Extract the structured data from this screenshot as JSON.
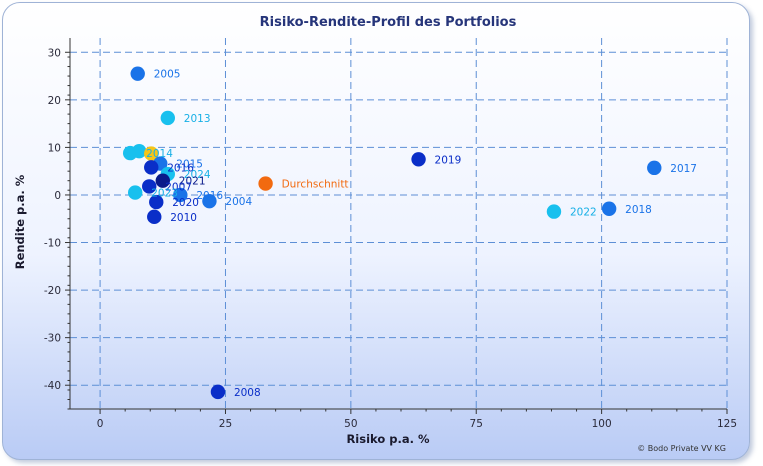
{
  "chart_data": {
    "type": "scatter",
    "title": "Risiko-Rendite-Profil des Portfolios",
    "xlabel": "Risiko p.a. %",
    "ylabel": "Rendite p.a. %",
    "xlim": [
      -6,
      125
    ],
    "ylim": [
      -45,
      33
    ],
    "xticks": [
      0,
      25,
      50,
      75,
      100,
      125
    ],
    "yticks": [
      -40,
      -30,
      -20,
      -10,
      0,
      10,
      20,
      30
    ],
    "grid": true,
    "copyright": "© Bodo Private VV KG",
    "points": [
      {
        "label": "2005",
        "x": 7.5,
        "y": 25.5,
        "color": "#1a73e8",
        "label_color": "#1a73e8"
      },
      {
        "label": "2013",
        "x": 13.5,
        "y": 16.2,
        "color": "#18c0ee",
        "label_color": "#18b0e6"
      },
      {
        "label": "2014",
        "x": 6,
        "y": 8.8,
        "color": "#18c0ee",
        "label_color": "#18b0e6"
      },
      {
        "label": "",
        "x": 7.8,
        "y": 9.2,
        "color": "#18c0ee",
        "label_color": "#18b0e6"
      },
      {
        "label": "",
        "x": 10.2,
        "y": 8.7,
        "color": "#f5c518",
        "label_color": "#f5c518"
      },
      {
        "label": "2015",
        "x": 12,
        "y": 6.6,
        "color": "#1a73e8",
        "label_color": "#1a73e8"
      },
      {
        "label": "2016",
        "x": 10.2,
        "y": 5.8,
        "color": "#0a2ec8",
        "label_color": "#0a2ec8"
      },
      {
        "label": "2024",
        "x": 13.5,
        "y": 4.4,
        "color": "#18c0ee",
        "label_color": "#18b0e6"
      },
      {
        "label": "2021",
        "x": 12.5,
        "y": 3.0,
        "color": "#0a1a8a",
        "label_color": "#0a1a8a"
      },
      {
        "label": "2007",
        "x": 9.8,
        "y": 1.8,
        "color": "#0a2ec8",
        "label_color": "#0a2ec8"
      },
      {
        "label": "2023",
        "x": 7,
        "y": 0.5,
        "color": "#18c0ee",
        "label_color": "#18b0e6"
      },
      {
        "label": "2016",
        "x": 16,
        "y": 0.0,
        "color": "#1a73e8",
        "label_color": "#1a73e8"
      },
      {
        "label": "2020",
        "x": 11.2,
        "y": -1.5,
        "color": "#0a2ec8",
        "label_color": "#0a2ec8"
      },
      {
        "label": "2004",
        "x": 21.8,
        "y": -1.3,
        "color": "#1a73e8",
        "label_color": "#1a73e8"
      },
      {
        "label": "2010",
        "x": 10.8,
        "y": -4.6,
        "color": "#0a2ec8",
        "label_color": "#0a2ec8"
      },
      {
        "label": "Durchschnitt",
        "x": 33,
        "y": 2.4,
        "color": "#f26a10",
        "label_color": "#f26a10"
      },
      {
        "label": "2019",
        "x": 63.5,
        "y": 7.5,
        "color": "#0a2ec8",
        "label_color": "#0a2ec8"
      },
      {
        "label": "2017",
        "x": 110.5,
        "y": 5.7,
        "color": "#1a73e8",
        "label_color": "#1a73e8"
      },
      {
        "label": "2018",
        "x": 101.5,
        "y": -2.9,
        "color": "#1a73e8",
        "label_color": "#1a73e8"
      },
      {
        "label": "2022",
        "x": 90.5,
        "y": -3.5,
        "color": "#18c0ee",
        "label_color": "#18b0e6"
      },
      {
        "label": "2008",
        "x": 23.5,
        "y": -41.4,
        "color": "#0a2ec8",
        "label_color": "#0a2ec8"
      }
    ]
  }
}
